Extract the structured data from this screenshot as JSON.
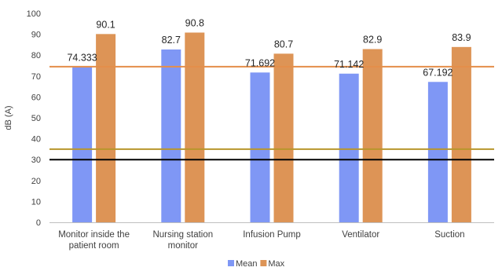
{
  "chart_data": {
    "type": "bar",
    "title": "",
    "xlabel": "",
    "ylabel": "dB (A)",
    "ylim": [
      0,
      100
    ],
    "y_ticks": [
      0,
      10,
      20,
      30,
      40,
      50,
      60,
      70,
      80,
      90,
      100
    ],
    "grid": false,
    "legend_position": "bottom",
    "categories": [
      [
        "Monitor inside the",
        "patient room"
      ],
      [
        "Nursing station",
        "monitor"
      ],
      [
        "Infusion Pump"
      ],
      [
        "Ventilator"
      ],
      [
        "Suction"
      ]
    ],
    "series": [
      {
        "name": "Mean",
        "color": "#7f97f5",
        "values": [
          74.333,
          82.7,
          71.692,
          71.142,
          67.192
        ],
        "labels": [
          "74.333",
          "82.7",
          "71.692",
          "71.142",
          "67.192"
        ]
      },
      {
        "name": "Max",
        "color": "#dd9456",
        "values": [
          90.1,
          90.8,
          80.7,
          82.9,
          83.9
        ],
        "labels": [
          "90.1",
          "90.8",
          "80.7",
          "82.9",
          "83.9"
        ]
      }
    ],
    "reference_lines": [
      {
        "y": 74.5,
        "color": "#e48e4a"
      },
      {
        "y": 35,
        "color": "#b8962c"
      },
      {
        "y": 30,
        "color": "#000000"
      }
    ]
  }
}
